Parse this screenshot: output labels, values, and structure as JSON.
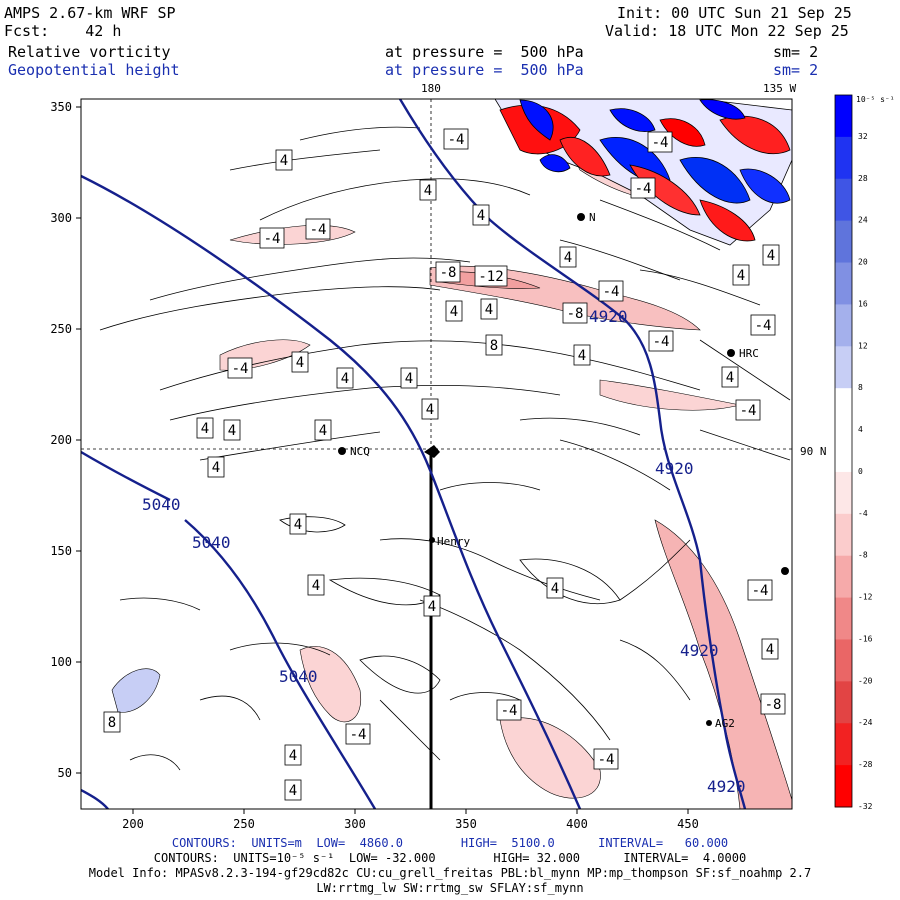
{
  "header": {
    "model": "AMPS 2.67-km WRF SP",
    "forecast": "Fcst:    42 h",
    "init": "Init: 00 UTC Sun 21 Sep 25",
    "valid": "Valid: 18 UTC Mon 22 Sep 25",
    "field1": "Relative vorticity",
    "field2": "Geopotential height",
    "level1": "at pressure =  500 hPa",
    "level2": "at pressure =  500 hPa",
    "smooth1": "sm= 2",
    "smooth2": "sm= 2"
  },
  "map": {
    "meridian_180": "180",
    "meridian_135w": "135 W",
    "parallel_90n": "90 N",
    "x_ticks": [
      "200",
      "250",
      "300",
      "350",
      "400",
      "450"
    ],
    "y_ticks": [
      "350",
      "300",
      "250",
      "200",
      "150",
      "100",
      "50"
    ],
    "stations": [
      {
        "id": "ncq",
        "label": "NCQ"
      },
      {
        "id": "henry",
        "label": "Henry"
      },
      {
        "id": "hrc",
        "label": "HRC"
      },
      {
        "id": "ag2",
        "label": "AG2"
      },
      {
        "id": "n",
        "label": "N"
      }
    ],
    "height_labels": [
      "5040",
      "5040",
      "5040",
      "4920",
      "4920",
      "4920",
      "4920"
    ],
    "vort_labels": {
      "v4": "4",
      "v8": "8",
      "vm4": "-4",
      "vm8": "-8",
      "vm12": "-12"
    }
  },
  "colorbar": {
    "units": "10⁻⁵ s⁻¹",
    "ticks": [
      "32",
      "28",
      "24",
      "20",
      "16",
      "12",
      "8",
      "4",
      "0",
      "-4",
      "-8",
      "-12",
      "-16",
      "-20",
      "-24",
      "-28",
      "-32"
    ],
    "colors": [
      "#0000ff",
      "#1f33f2",
      "#3f55e5",
      "#5f74dc",
      "#8090e3",
      "#a4b0ec",
      "#c7cef5",
      "#ffffff",
      "#ffffff",
      "#fde7e7",
      "#fbcccc",
      "#f6aaaa",
      "#f08888",
      "#ea6666",
      "#e24444",
      "#f22222",
      "#ff0000"
    ]
  },
  "footer": {
    "line1": "CONTOURS:  UNITS=m  LOW=  4860.0        HIGH=  5100.0      INTERVAL=   60.000",
    "line2": "CONTOURS:  UNITS=10⁻⁵ s⁻¹  LOW= -32.000        HIGH= 32.000      INTERVAL=  4.0000",
    "line3": "Model Info: MPASv8.2.3-194-gf29cd82c CU:cu_grell_freitas PBL:bl_mynn MP:mp_thompson SF:sf_noahmp 2.7",
    "line4": "LW:rrtmg_lw SW:rrtmg_sw SFLAY:sf_mynn"
  }
}
